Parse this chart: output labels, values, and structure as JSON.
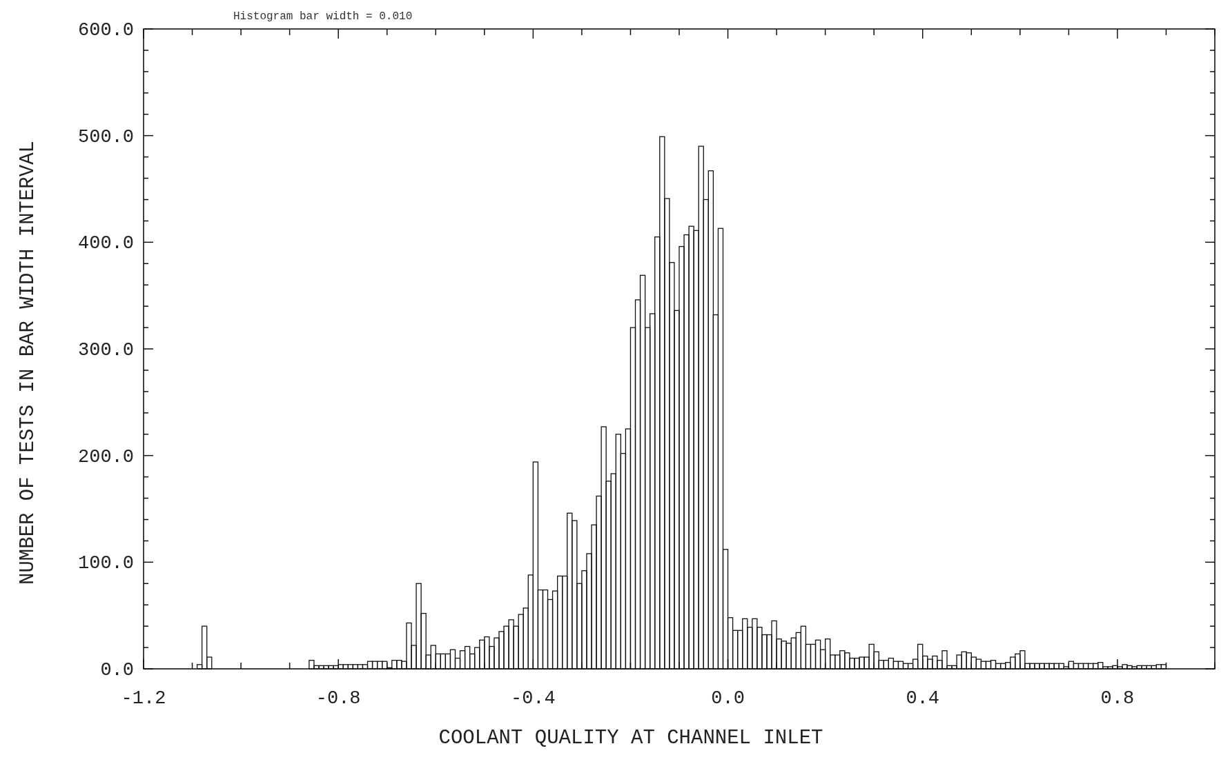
{
  "chart_data": {
    "type": "histogram",
    "title": "Histogram bar width =    0.010",
    "xlabel": "COOLANT QUALITY AT CHANNEL INLET",
    "ylabel": "NUMBER OF TESTS IN BAR WIDTH INTERVAL",
    "color": "#111111",
    "bins": [
      -1.09,
      -1.08,
      -1.07,
      -1.06,
      -0.86,
      -0.85,
      -0.84,
      -0.83,
      -0.82,
      -0.81,
      -0.8,
      -0.79,
      -0.78,
      -0.77,
      -0.76,
      -0.75,
      -0.74,
      -0.73,
      -0.72,
      -0.71,
      -0.7,
      -0.69,
      -0.68,
      -0.67,
      -0.66,
      -0.65,
      -0.64,
      -0.63,
      -0.62,
      -0.61,
      -0.6,
      -0.59,
      -0.58,
      -0.57,
      -0.56,
      -0.55,
      -0.54,
      -0.53,
      -0.52,
      -0.51,
      -0.5,
      -0.49,
      -0.48,
      -0.47,
      -0.46,
      -0.45,
      -0.44,
      -0.43,
      -0.42,
      -0.41,
      -0.4,
      -0.39,
      -0.38,
      -0.37,
      -0.36,
      -0.35,
      -0.34,
      -0.33,
      -0.32,
      -0.31,
      -0.3,
      -0.29,
      -0.28,
      -0.27,
      -0.26,
      -0.25,
      -0.24,
      -0.23,
      -0.22,
      -0.21,
      -0.2,
      -0.19,
      -0.18,
      -0.17,
      -0.16,
      -0.15,
      -0.14,
      -0.13,
      -0.12,
      -0.11,
      -0.1,
      -0.09,
      -0.08,
      -0.07,
      -0.06,
      -0.05,
      -0.04,
      -0.03,
      -0.02,
      -0.01,
      0.0,
      0.01,
      0.02,
      0.03,
      0.04,
      0.05,
      0.06,
      0.07,
      0.08,
      0.09,
      0.1,
      0.11,
      0.12,
      0.13,
      0.14,
      0.15,
      0.16,
      0.17,
      0.18,
      0.19,
      0.2,
      0.21,
      0.22,
      0.23,
      0.24,
      0.25,
      0.26,
      0.27,
      0.28,
      0.29,
      0.3,
      0.31,
      0.32,
      0.33,
      0.34,
      0.35,
      0.36,
      0.37,
      0.38,
      0.39,
      0.4,
      0.41,
      0.42,
      0.43,
      0.44,
      0.45,
      0.46,
      0.47,
      0.48,
      0.49,
      0.5,
      0.51,
      0.52,
      0.53,
      0.54,
      0.55,
      0.56,
      0.57,
      0.58,
      0.59,
      0.6,
      0.61,
      0.62,
      0.63,
      0.64,
      0.65,
      0.66,
      0.67,
      0.68,
      0.69,
      0.7,
      0.71,
      0.72,
      0.73,
      0.74,
      0.75,
      0.76,
      0.77,
      0.78,
      0.79,
      0.8,
      0.81,
      0.82,
      0.83,
      0.84,
      0.85,
      0.86,
      0.87,
      0.88,
      0.89,
      0.9
    ],
    "values": [
      4,
      40,
      11,
      0,
      8,
      3,
      3,
      3,
      3,
      3,
      4,
      4,
      4,
      4,
      4,
      4,
      7,
      7,
      7,
      7,
      1,
      8,
      8,
      7,
      43,
      22,
      80,
      52,
      13,
      22,
      14,
      14,
      14,
      18,
      10,
      17,
      21,
      14,
      20,
      27,
      30,
      21,
      29,
      35,
      40,
      46,
      40,
      51,
      57,
      88,
      194,
      74,
      74,
      65,
      73,
      87,
      87,
      146,
      139,
      80,
      92,
      108,
      135,
      162,
      227,
      176,
      183,
      220,
      202,
      225,
      320,
      346,
      369,
      320,
      333,
      405,
      499,
      441,
      381,
      336,
      396,
      407,
      415,
      411,
      490,
      440,
      467,
      332,
      413,
      112,
      48,
      36,
      36,
      47,
      39,
      47,
      39,
      32,
      32,
      45,
      28,
      26,
      24,
      29,
      34,
      40,
      23,
      23,
      27,
      18,
      28,
      13,
      13,
      17,
      15,
      10,
      10,
      11,
      11,
      23,
      16,
      8,
      8,
      10,
      7,
      7,
      5,
      5,
      9,
      23,
      12,
      9,
      12,
      8,
      17,
      3,
      3,
      13,
      16,
      15,
      11,
      9,
      7,
      7,
      8,
      5,
      5,
      6,
      11,
      14,
      17,
      5,
      5,
      5,
      5,
      5,
      5,
      5,
      5,
      2,
      7,
      5,
      5,
      5,
      5,
      5,
      6,
      2,
      2,
      3,
      2,
      4,
      3,
      2,
      3,
      3,
      3,
      3,
      4,
      4
    ],
    "xlim": [
      -1.2,
      1.0
    ],
    "xticks": [
      {
        "value": -1.2,
        "label": "-1.2"
      },
      {
        "value": -1.1,
        "label": null
      },
      {
        "value": -1.0,
        "label": null
      },
      {
        "value": -0.9,
        "label": null
      },
      {
        "value": -0.8,
        "label": "-0.8"
      },
      {
        "value": -0.7,
        "label": null
      },
      {
        "value": -0.6,
        "label": null
      },
      {
        "value": -0.5,
        "label": null
      },
      {
        "value": -0.4,
        "label": "-0.4"
      },
      {
        "value": -0.3,
        "label": null
      },
      {
        "value": -0.2,
        "label": null
      },
      {
        "value": -0.1,
        "label": null
      },
      {
        "value": 0.0,
        "label": "0.0"
      },
      {
        "value": 0.1,
        "label": null
      },
      {
        "value": 0.2,
        "label": null
      },
      {
        "value": 0.3,
        "label": null
      },
      {
        "value": 0.4,
        "label": "0.4"
      },
      {
        "value": 0.5,
        "label": null
      },
      {
        "value": 0.6,
        "label": null
      },
      {
        "value": 0.7,
        "label": null
      },
      {
        "value": 0.8,
        "label": "0.8"
      },
      {
        "value": 0.9,
        "label": null
      },
      {
        "value": 1.0,
        "label": null
      }
    ],
    "ylim": [
      0,
      600
    ],
    "yticks": [
      {
        "value": 0,
        "label": "0.0"
      },
      {
        "value": 20,
        "label": null
      },
      {
        "value": 40,
        "label": null
      },
      {
        "value": 60,
        "label": null
      },
      {
        "value": 80,
        "label": null
      },
      {
        "value": 100,
        "label": "100.0"
      },
      {
        "value": 120,
        "label": null
      },
      {
        "value": 140,
        "label": null
      },
      {
        "value": 160,
        "label": null
      },
      {
        "value": 180,
        "label": null
      },
      {
        "value": 200,
        "label": "200.0"
      },
      {
        "value": 220,
        "label": null
      },
      {
        "value": 240,
        "label": null
      },
      {
        "value": 260,
        "label": null
      },
      {
        "value": 280,
        "label": null
      },
      {
        "value": 300,
        "label": "300.0"
      },
      {
        "value": 320,
        "label": null
      },
      {
        "value": 340,
        "label": null
      },
      {
        "value": 360,
        "label": null
      },
      {
        "value": 380,
        "label": null
      },
      {
        "value": 400,
        "label": "400.0"
      },
      {
        "value": 420,
        "label": null
      },
      {
        "value": 440,
        "label": null
      },
      {
        "value": 460,
        "label": null
      },
      {
        "value": 480,
        "label": null
      },
      {
        "value": 500,
        "label": "500.0"
      },
      {
        "value": 520,
        "label": null
      },
      {
        "value": 540,
        "label": null
      },
      {
        "value": 560,
        "label": null
      },
      {
        "value": 580,
        "label": null
      },
      {
        "value": 600,
        "label": "600.0"
      }
    ],
    "grid": false
  }
}
